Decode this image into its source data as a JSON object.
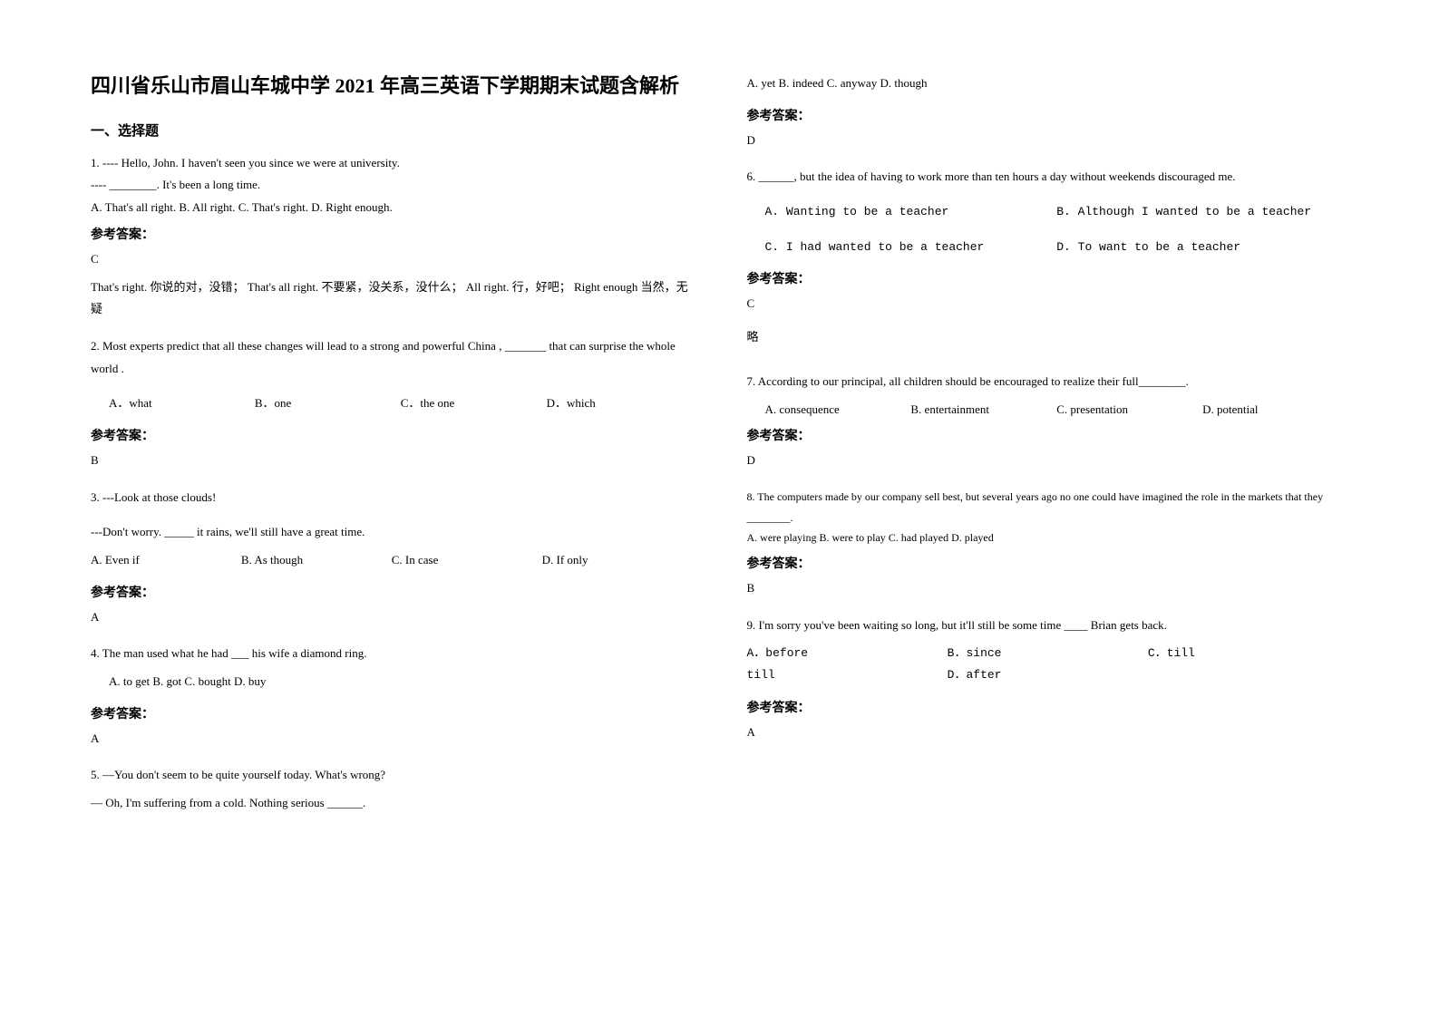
{
  "title": "四川省乐山市眉山车城中学 2021 年高三英语下学期期末试题含解析",
  "sectionHeader": "一、选择题",
  "answerLabel": "参考答案：",
  "omit": "略",
  "q1": {
    "line1": "1. ---- Hello, John. I haven't seen you since we were at university.",
    "line2": "---- ________. It's been a long time.",
    "options": "A. That's all right.    B. All right.    C. That's right.    D. Right enough.",
    "answer": "C",
    "explanation": "That's right. 你说的对，没错； That's all right. 不要紧，没关系，没什么； All right. 行，好吧； Right enough 当然，无疑"
  },
  "q2": {
    "text": "2. Most experts predict that all these changes will lead to a strong and powerful China , _______ that can surprise the whole world .",
    "optA": "A．what",
    "optB": "B．one",
    "optC": "C．the one",
    "optD": "D．which",
    "answer": "B"
  },
  "q3": {
    "line1": "3. ---Look at those clouds!",
    "line2": "---Don't worry. _____ it rains, we'll still have a great time.",
    "optA": "A. Even if",
    "optB": "B. As though",
    "optC": "C. In case",
    "optD": "D. If only",
    "answer": "A"
  },
  "q4": {
    "text": "4. The man used what he had ___ his wife a diamond ring.",
    "options": "A. to get B. got              C. bought D. buy",
    "answer": "A"
  },
  "q5": {
    "line1": "5. —You don't seem to be quite yourself today. What's wrong?",
    "line2": "— Oh, I'm suffering from a cold. Nothing serious ______.",
    "options": "A. yet   B. indeed   C. anyway   D. though",
    "answer": "D"
  },
  "q6": {
    "text": "6. ______, but the idea of having to work more than ten hours a day without weekends discouraged me.",
    "optA": "A. Wanting to be a teacher",
    "optB": "B. Although I wanted to be a teacher",
    "optC": "C. I had wanted to be a teacher",
    "optD": "D. To want to be a teacher",
    "answer": "C"
  },
  "q7": {
    "text": "7. According to our principal, all children should be encouraged to realize their full________.",
    "optA": "A. consequence",
    "optB": "B. entertainment",
    "optC": "C. presentation",
    "optD": "D. potential",
    "answer": "D"
  },
  "q8": {
    "line1": "8. The computers made by our company sell best, but several years ago no one could have imagined the role in the markets that they ________.",
    "options": "A. were playing    B. were to play    C. had played   D. played",
    "answer": "B"
  },
  "q9": {
    "text": "9. I'm sorry you've been waiting so long, but it'll still be some time ____ Brian gets back.",
    "optA": "A．before",
    "optB": "B．since",
    "optC": "C．till",
    "optD": "D．after",
    "answer": "A"
  }
}
